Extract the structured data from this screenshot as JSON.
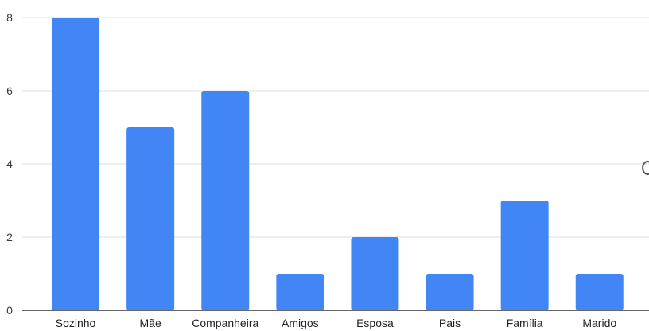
{
  "chart_data": {
    "type": "bar",
    "categories": [
      "Sozinho",
      "Mãe",
      "Companheira",
      "Amigos",
      "Esposa",
      "Pais",
      "Família",
      "Marido"
    ],
    "values": [
      8,
      5,
      6,
      1,
      2,
      1,
      3,
      1
    ],
    "ylim": [
      0,
      8
    ],
    "yticks": [
      0,
      2,
      4,
      6,
      8
    ],
    "grid": true,
    "title": "",
    "xlabel": "",
    "ylabel": "",
    "bar_color": "#4285f4",
    "grid_color": "#dcdcdc"
  }
}
